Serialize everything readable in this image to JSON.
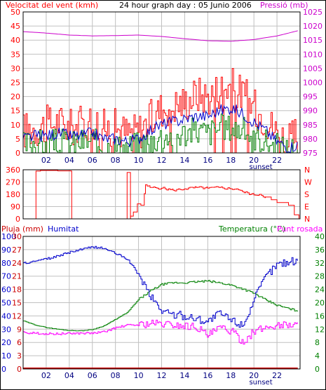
{
  "header": {
    "left_title": "Velocitat del vent (kmh)",
    "center_title": "24 hour graph day : 05 Junio 2006",
    "right_title": "Pressió (mb)"
  },
  "mid_labels": {
    "left_rain": "Pluja (mm)",
    "left_hum": "Humitat",
    "right_temp": "Temperatura (°C)",
    "right_dew": "Punt rosada"
  },
  "colors": {
    "wind_red": "#ff0000",
    "wind_avg_blue": "#0000cc",
    "wind_green": "#008000",
    "pressure": "#cc00cc",
    "direction": "#ff0000",
    "humidity": "#0000cc",
    "temperature": "#008000",
    "dewpoint": "#ff00ff",
    "rain": "#cc0000",
    "axis_left_text": "#ff0000",
    "axis_right_text": "#cc00cc",
    "grid": "#c0c0c0"
  },
  "chart_data": [
    {
      "type": "line",
      "x_ticks": [
        "02",
        "04",
        "06",
        "08",
        "10",
        "12",
        "14",
        "16",
        "18",
        "20",
        "22"
      ],
      "sunset_label": "sunset",
      "sunset_hour": 20.6,
      "x_range_hours": [
        0,
        24
      ],
      "grid": true,
      "left_axis": {
        "ticks": [
          "0",
          "5",
          "10",
          "15",
          "20",
          "25",
          "30",
          "35",
          "40",
          "45",
          "50"
        ],
        "range": [
          0,
          50
        ]
      },
      "right_axis": {
        "ticks": [
          "975",
          "980",
          "985",
          "990",
          "995",
          "1000",
          "1005",
          "1010",
          "1015",
          "1020",
          "1025"
        ],
        "range": [
          975,
          1025
        ]
      },
      "series": [
        {
          "axis": "right",
          "hours": [
            0,
            2,
            4,
            6,
            8,
            10,
            12,
            14,
            16,
            18,
            20,
            22,
            23.8
          ],
          "values": [
            1018,
            1017.5,
            1016.8,
            1016.5,
            1016.6,
            1016.8,
            1016.3,
            1015.5,
            1014.8,
            1014.6,
            1015.2,
            1016.5,
            1018.3
          ]
        },
        {
          "axis": "left",
          "hours": [
            0,
            1,
            2,
            3,
            4,
            5,
            6,
            7,
            8,
            9,
            10,
            11,
            12,
            13,
            14,
            15,
            16,
            17,
            18,
            19,
            20,
            21,
            22,
            23,
            23.8
          ],
          "values": [
            8,
            9,
            10,
            11,
            9,
            10,
            12,
            9,
            9,
            7,
            8,
            12,
            16,
            17,
            18,
            21,
            20,
            23,
            24,
            21,
            16,
            12,
            7,
            4,
            6
          ]
        },
        {
          "axis": "left",
          "hours": [
            0,
            1,
            2,
            3,
            4,
            5,
            6,
            7,
            8,
            9,
            10,
            11,
            12,
            13,
            14,
            15,
            16,
            17,
            18,
            19,
            20,
            21,
            22,
            23,
            23.8
          ],
          "values": [
            5,
            6,
            6,
            7,
            6,
            6,
            7,
            5,
            5,
            4,
            5,
            8,
            10,
            11,
            12,
            13,
            13,
            15,
            16,
            14,
            11,
            8,
            4,
            2,
            3
          ]
        },
        {
          "axis": "left",
          "hours": [
            0,
            1,
            2,
            3,
            4,
            5,
            6,
            7,
            8,
            9,
            10,
            11,
            12,
            13,
            14,
            15,
            16,
            17,
            18,
            19,
            20,
            21,
            22,
            23,
            23.8
          ],
          "values": [
            3,
            4,
            3,
            4,
            3,
            4,
            4,
            2,
            2,
            2,
            3,
            4,
            6,
            6,
            7,
            8,
            7,
            9,
            9,
            8,
            6,
            4,
            2,
            1,
            2
          ]
        }
      ]
    },
    {
      "type": "line",
      "left_axis": {
        "ticks": [
          "360",
          "270",
          "180",
          "90",
          "0"
        ],
        "range": [
          0,
          360
        ]
      },
      "right_axis": {
        "ticks": [
          "N",
          "W",
          "S",
          "E",
          "N"
        ]
      },
      "grid": true,
      "series": [
        {
          "axis": "left",
          "hours": [
            0,
            1.1,
            1.11,
            1.5,
            3,
            4.2,
            4.21,
            9.0,
            9.01,
            9.3,
            9.31,
            9.55,
            9.9,
            10.2,
            10.5,
            10.6,
            11,
            12,
            13,
            14,
            15,
            16,
            17,
            18,
            18.5,
            19,
            20,
            20.5,
            21,
            21.5,
            22,
            23,
            23.5,
            23.9
          ],
          "values": [
            0,
            0,
            350,
            355,
            352,
            345,
            0,
            0,
            340,
            0,
            20,
            50,
            110,
            100,
            185,
            250,
            230,
            225,
            210,
            220,
            230,
            225,
            230,
            220,
            220,
            200,
            175,
            180,
            160,
            140,
            120,
            100,
            30,
            0
          ]
        }
      ]
    },
    {
      "type": "line",
      "left_axis": {
        "ticks": [
          "0",
          "10",
          "20",
          "30",
          "40",
          "50",
          "60",
          "70",
          "80",
          "90",
          "100"
        ],
        "range": [
          0,
          100
        ]
      },
      "rain_axis": {
        "ticks": [
          "0",
          "3",
          "6",
          "9",
          "12",
          "15",
          "18",
          "21",
          "24",
          "27",
          "30"
        ],
        "range": [
          0,
          30
        ]
      },
      "right_axis": {
        "ticks": [
          "0",
          "4",
          "8",
          "12",
          "16",
          "20",
          "24",
          "28",
          "32",
          "36",
          "40"
        ],
        "range": [
          0,
          40
        ]
      },
      "grid": true,
      "series": [
        {
          "axis": "left",
          "hours": [
            0,
            1,
            2,
            3,
            4,
            5,
            6,
            7,
            8,
            9,
            10,
            11,
            12,
            13,
            14,
            15,
            16,
            17,
            18,
            19,
            20,
            21,
            22,
            23,
            23.8
          ],
          "values": [
            80,
            81,
            83,
            85,
            88,
            90,
            92,
            91,
            87,
            83,
            71,
            55,
            44,
            41,
            40,
            38,
            36,
            42,
            37,
            33,
            52,
            70,
            79,
            81,
            82
          ]
        },
        {
          "axis": "right",
          "hours": [
            0,
            1,
            2,
            3,
            4,
            5,
            6,
            7,
            8,
            9,
            10,
            11,
            12,
            13,
            14,
            15,
            16,
            17,
            18,
            19,
            20,
            21,
            22,
            23,
            23.8
          ],
          "values": [
            14.5,
            13.3,
            12.5,
            12,
            11.6,
            11.5,
            11.9,
            13,
            15,
            17,
            21,
            23.5,
            25.5,
            26,
            26,
            26.3,
            26.5,
            26,
            25.3,
            24.2,
            22.8,
            20.8,
            19.2,
            18.2,
            17.5
          ]
        },
        {
          "axis": "right",
          "hours": [
            0,
            1,
            2,
            3,
            4,
            5,
            6,
            7,
            8,
            9,
            10,
            11,
            12,
            13,
            14,
            15,
            16,
            17,
            18,
            19,
            20,
            21,
            22,
            23,
            23.8
          ],
          "values": [
            11,
            10.8,
            10.6,
            10.6,
            10.7,
            10.8,
            10.8,
            11.2,
            12.4,
            13.2,
            13.3,
            13.8,
            13.6,
            13.3,
            13,
            12.8,
            10,
            12.4,
            11.5,
            8.2,
            11.3,
            12.5,
            13.2,
            13.4,
            13.3
          ]
        },
        {
          "axis": "rain",
          "hours": [
            0,
            23.8
          ],
          "values": [
            0,
            0
          ]
        }
      ]
    }
  ]
}
